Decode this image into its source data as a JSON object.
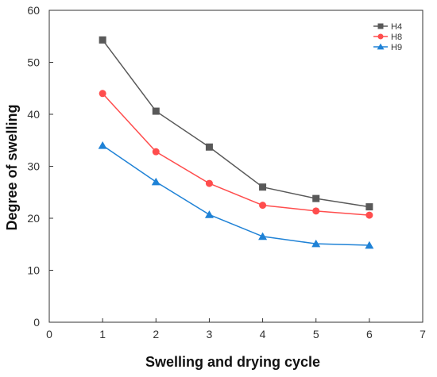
{
  "chart_data": {
    "type": "line",
    "xlabel": "Swelling and drying cycle",
    "ylabel": "Degree of swelling",
    "xlim": [
      0,
      7
    ],
    "ylim": [
      0,
      60
    ],
    "xticks": [
      0,
      1,
      2,
      3,
      4,
      5,
      6,
      7
    ],
    "yticks": [
      0,
      10,
      20,
      30,
      40,
      50,
      60
    ],
    "grid": false,
    "legend_position": "top-right",
    "x": [
      1,
      2,
      3,
      4,
      5,
      6
    ],
    "series": [
      {
        "name": "H4",
        "values": [
          54.3,
          40.6,
          33.7,
          26.0,
          23.8,
          22.2
        ],
        "color": "#595959",
        "marker": "square"
      },
      {
        "name": "H8",
        "values": [
          44.0,
          32.8,
          26.7,
          22.5,
          21.4,
          20.6
        ],
        "color": "#ff4d4d",
        "marker": "circle"
      },
      {
        "name": "H9",
        "values": [
          34.0,
          27.0,
          20.7,
          16.5,
          15.1,
          14.8
        ],
        "color": "#1f82d6",
        "marker": "triangle"
      }
    ]
  }
}
